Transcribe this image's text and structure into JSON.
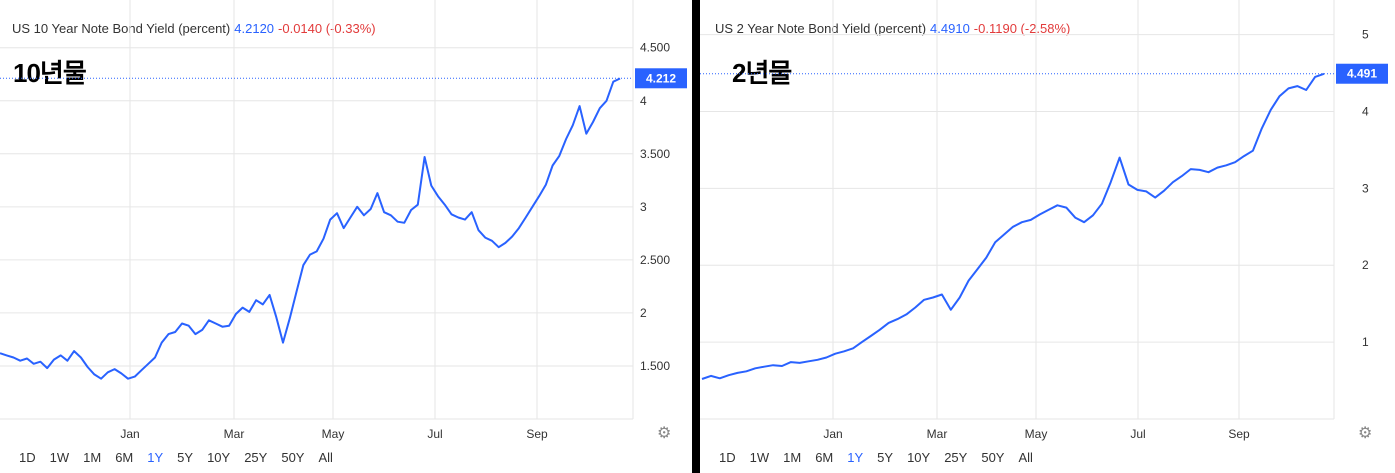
{
  "panels": [
    {
      "header": {
        "title": "US 10 Year Note Bond Yield (percent)",
        "value": "4.2120",
        "change": "-0.0140 (-0.33%)"
      },
      "label": "10년물",
      "price_tag": "4.212",
      "range_buttons": [
        "1D",
        "1W",
        "1M",
        "6M",
        "1Y",
        "5Y",
        "10Y",
        "25Y",
        "50Y",
        "All"
      ],
      "active_range": "1Y"
    },
    {
      "header": {
        "title": "US 2 Year Note Bond Yield (percent)",
        "value": "4.4910",
        "change": "-0.1190 (-2.58%)"
      },
      "label": "2년물",
      "price_tag": "4.491",
      "range_buttons": [
        "1D",
        "1W",
        "1M",
        "6M",
        "1Y",
        "5Y",
        "10Y",
        "25Y",
        "50Y",
        "All"
      ],
      "active_range": "1Y"
    }
  ],
  "colors": {
    "line": "#2962ff",
    "grid": "#e6e6e6",
    "negative": "#e23b3b",
    "tag_bg": "#2962ff"
  },
  "icons": {
    "settings": "gear-icon"
  },
  "chart_data": [
    {
      "type": "line",
      "title": "US 10 Year Note Bond Yield (percent)",
      "xlabel": "",
      "ylabel": "",
      "x_tick_labels": [
        "Jan",
        "Mar",
        "May",
        "Jul",
        "Sep"
      ],
      "y_tick_labels": [
        "1.500",
        "2",
        "2.500",
        "3",
        "3.500",
        "4",
        "4.500"
      ],
      "ylim": [
        1.0,
        4.95
      ],
      "last_value": 4.212,
      "grid": true,
      "series": [
        {
          "values": [
            1.62,
            1.6,
            1.58,
            1.55,
            1.57,
            1.52,
            1.54,
            1.48,
            1.56,
            1.6,
            1.55,
            1.64,
            1.58,
            1.49,
            1.42,
            1.38,
            1.44,
            1.47,
            1.43,
            1.38,
            1.4,
            1.46,
            1.52,
            1.58,
            1.72,
            1.8,
            1.82,
            1.9,
            1.88,
            1.8,
            1.84,
            1.93,
            1.9,
            1.87,
            1.88,
            1.99,
            2.05,
            2.01,
            2.12,
            2.08,
            2.17,
            1.96,
            1.72,
            1.95,
            2.2,
            2.45,
            2.55,
            2.58,
            2.7,
            2.88,
            2.94,
            2.8,
            2.9,
            3.0,
            2.92,
            2.98,
            3.13,
            2.95,
            2.92,
            2.86,
            2.85,
            2.97,
            3.02,
            3.47,
            3.2,
            3.1,
            3.02,
            2.93,
            2.9,
            2.88,
            2.95,
            2.78,
            2.71,
            2.68,
            2.62,
            2.66,
            2.72,
            2.8,
            2.9,
            3.0,
            3.1,
            3.21,
            3.39,
            3.48,
            3.64,
            3.77,
            3.95,
            3.69,
            3.8,
            3.93,
            4.0,
            4.18,
            4.21
          ]
        }
      ]
    },
    {
      "type": "line",
      "title": "US 2 Year Note Bond Yield (percent)",
      "xlabel": "",
      "ylabel": "",
      "x_tick_labels": [
        "Jan",
        "Mar",
        "May",
        "Jul",
        "Sep"
      ],
      "y_tick_labels": [
        "1",
        "2",
        "3",
        "4",
        "5"
      ],
      "ylim": [
        0.0,
        5.45
      ],
      "last_value": 4.491,
      "grid": true,
      "series": [
        {
          "values": [
            0.52,
            0.56,
            0.53,
            0.57,
            0.6,
            0.62,
            0.66,
            0.68,
            0.7,
            0.69,
            0.74,
            0.73,
            0.75,
            0.77,
            0.8,
            0.85,
            0.88,
            0.92,
            1.0,
            1.08,
            1.16,
            1.25,
            1.3,
            1.36,
            1.45,
            1.55,
            1.58,
            1.62,
            1.42,
            1.58,
            1.8,
            1.95,
            2.1,
            2.3,
            2.4,
            2.5,
            2.56,
            2.59,
            2.66,
            2.72,
            2.78,
            2.75,
            2.62,
            2.56,
            2.65,
            2.8,
            3.08,
            3.4,
            3.05,
            2.98,
            2.96,
            2.88,
            2.97,
            3.08,
            3.16,
            3.25,
            3.24,
            3.21,
            3.27,
            3.3,
            3.34,
            3.42,
            3.49,
            3.78,
            4.02,
            4.2,
            4.3,
            4.33,
            4.28,
            4.45,
            4.49
          ]
        }
      ]
    }
  ]
}
